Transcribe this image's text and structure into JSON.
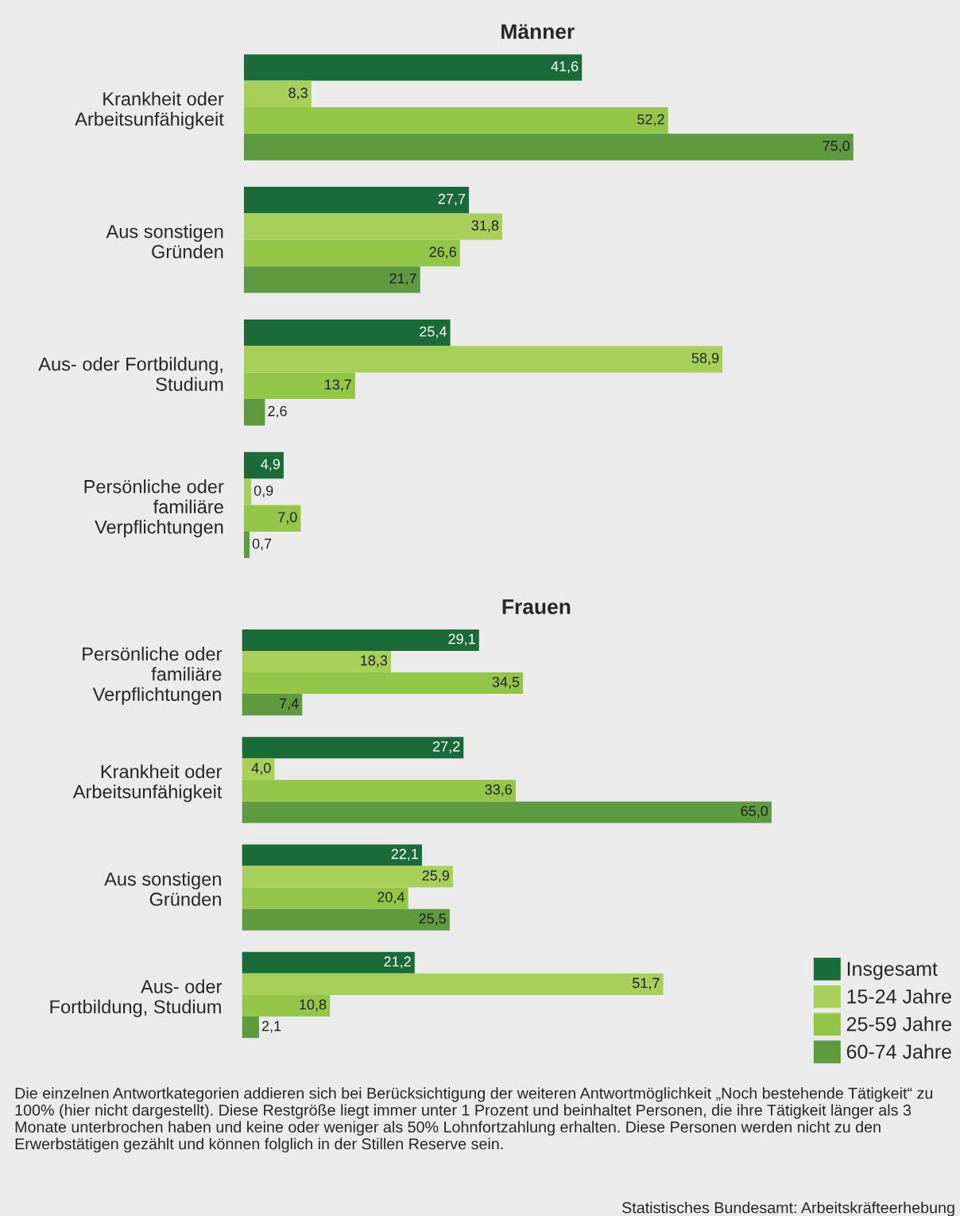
{
  "chart_data": [
    {
      "type": "bar",
      "orientation": "horizontal",
      "title": "Männer",
      "categories": [
        "Krankheit oder\nArbeitsunfähigkeit",
        "Aus sonstigen\nGründen",
        "Aus- oder Fortbildung,\nStudium",
        "Persönliche oder\nfamiliäre\nVerpflichtungen"
      ],
      "series": [
        {
          "color": "#1b6b38",
          "values": [
            41.6,
            27.7,
            25.4,
            4.9
          ],
          "value_labels": [
            "41,6",
            "27,7",
            "25,4",
            "4,9"
          ]
        },
        {
          "color": "#a6d05a",
          "values": [
            8.3,
            31.8,
            58.9,
            0.9
          ],
          "value_labels": [
            "8,3",
            "31,8",
            "58,9",
            "0,9"
          ]
        },
        {
          "color": "#93c648",
          "values": [
            52.2,
            26.6,
            13.7,
            7.0
          ],
          "value_labels": [
            "52,2",
            "26,6",
            "13,7",
            "7,0"
          ]
        },
        {
          "color": "#5e9a40",
          "values": [
            75.0,
            21.7,
            2.6,
            0.7
          ],
          "value_labels": [
            "75,0",
            "21,7",
            "2,6",
            "0,7"
          ]
        }
      ],
      "tick_labels": "y",
      "grid": false,
      "legend": false
    },
    {
      "type": "bar",
      "orientation": "horizontal",
      "title": "Frauen",
      "categories": [
        "Persönliche oder\nfamiliäre\nVerpflichtungen",
        "Krankheit oder\nArbeitsunfähigkeit",
        "Aus sonstigen\nGründen",
        "Aus- oder\nFortbildung, Studium"
      ],
      "series": [
        {
          "name": "Insgesamt",
          "color": "#1b6b38",
          "values": [
            29.1,
            27.2,
            22.1,
            21.2
          ],
          "value_labels": [
            "29,1",
            "27,2",
            "22,1",
            "21,2"
          ]
        },
        {
          "name": "15-24 Jahre",
          "color": "#a6d05a",
          "values": [
            18.3,
            4.0,
            25.9,
            51.7
          ],
          "value_labels": [
            "18,3",
            "4,0",
            "25,9",
            "51,7"
          ]
        },
        {
          "name": "25-59 Jahre",
          "color": "#93c648",
          "values": [
            34.5,
            33.6,
            20.4,
            10.8
          ],
          "value_labels": [
            "34,5",
            "33,6",
            "20,4",
            "10,8"
          ]
        },
        {
          "name": "60-74 Jahre",
          "color": "#5e9a40",
          "values": [
            7.4,
            65.0,
            25.5,
            2.1
          ],
          "value_labels": [
            "7,4",
            "65,0",
            "25,5",
            "2,1"
          ]
        }
      ],
      "tick_labels": "y",
      "grid": false,
      "legend": "bottom right",
      "annotations": [
        "Die einzelnen Antwortkategorien addieren sich bei Berücksichtigung der weiteren Antwortmöglichkeit „Noch bestehende Tätigkeit“ zu 100% (hier nicht dargestellt). Diese Restgröße liegt immer unter 1 Prozent und beinhaltet Personen, die ihre Tätigkeit länger als 3 Monate unterbrochen haben und keine oder weniger als 50% Lohnfortzahlung erhalten. Diese Personen werden nicht zu den Erwerbstätigen gezählt und können folglich in der Stillen Reserve sein.",
        "Statistisches Bundesamt: Arbeitskräfteerhebung"
      ]
    }
  ]
}
